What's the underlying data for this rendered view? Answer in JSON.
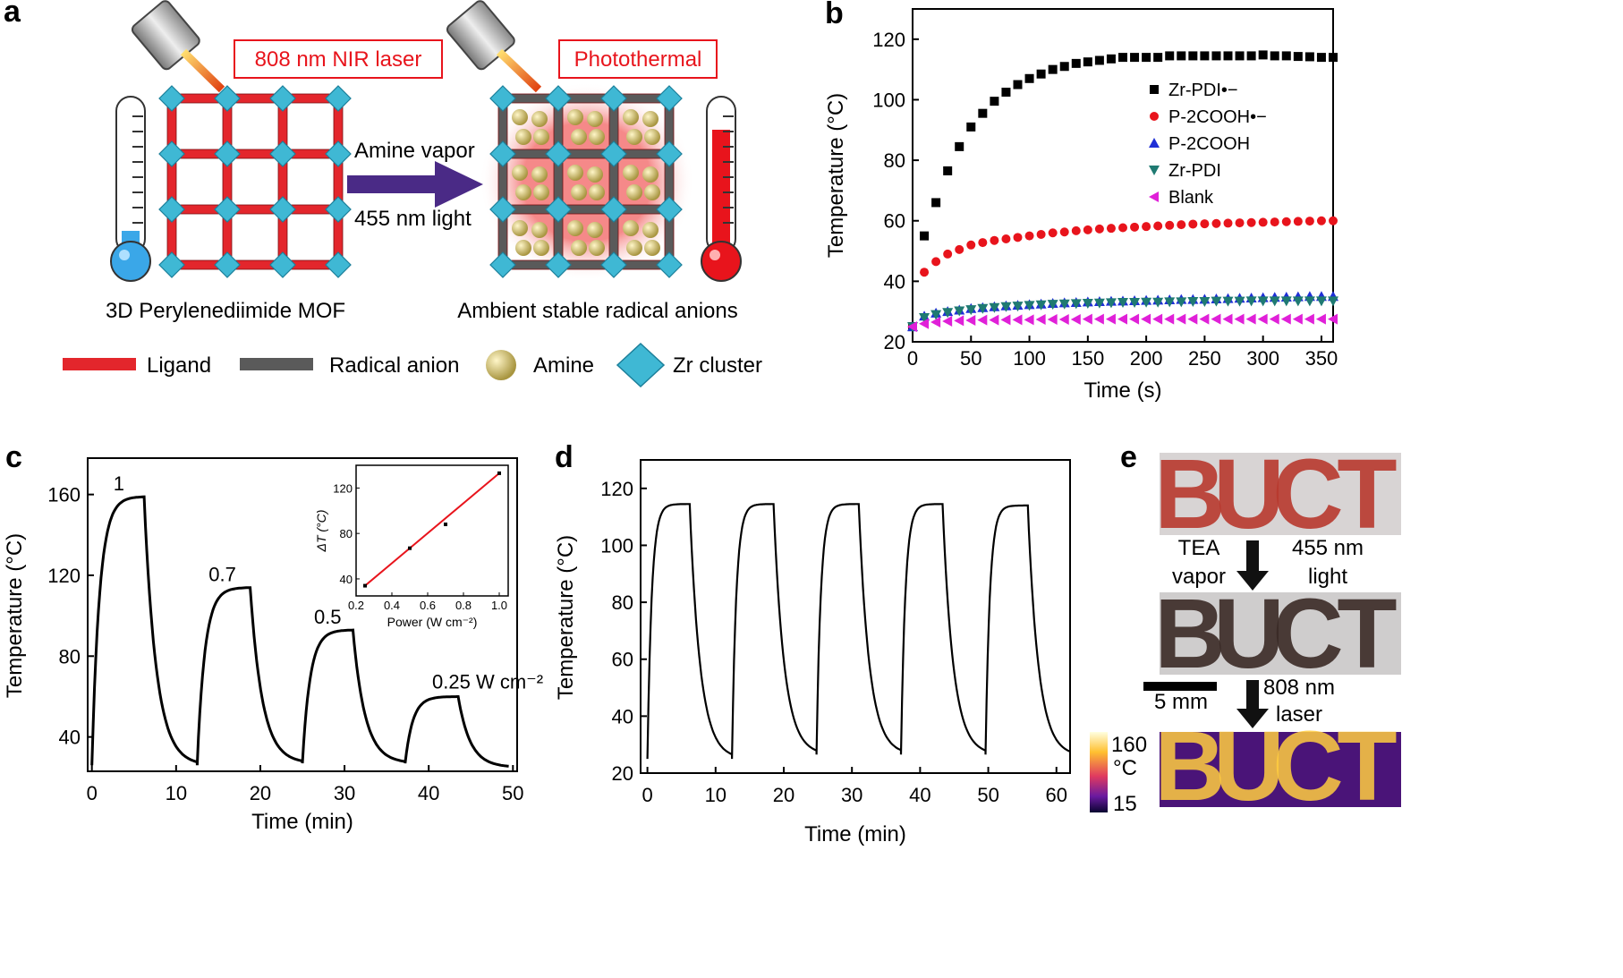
{
  "panels": {
    "a": {
      "label": "a",
      "laser_label": "808 nm NIR laser",
      "photothermal_label": "Photothermal",
      "amine_label": "Amine vapor",
      "light_label": "455 nm light",
      "left_caption": "3D Perylenediimide MOF",
      "right_caption": "Ambient stable radical anions",
      "legend": [
        "Ligand",
        "Radical anion",
        "Amine",
        "Zr cluster"
      ],
      "colors": {
        "ligand": "#e3262c",
        "radical": "#5a5a5a",
        "amine": "#c9b860",
        "zr": "#3fb8d4",
        "glow": "#f47c7c"
      }
    },
    "b": {
      "label": "b"
    },
    "c": {
      "label": "c"
    },
    "d": {
      "label": "d"
    },
    "e": {
      "label": "e",
      "word": [
        "B",
        "U",
        "C",
        "T"
      ],
      "arrow1_left": [
        "TEA",
        "vapor"
      ],
      "arrow1_right": [
        "455 nm",
        "light"
      ],
      "scale": "5 mm",
      "arrow2_right": [
        "808 nm",
        "laser"
      ],
      "colorbar_max": "160",
      "colorbar_unit": "°C",
      "colorbar_min": "15",
      "colors": {
        "red_dots": "#b8382e",
        "black_dots": "#3a2a26",
        "thermal_bg": "#5a1a8c",
        "thermal_fg": "#ffcc40"
      }
    }
  },
  "chart_data": [
    {
      "panel": "b",
      "type": "scatter",
      "xlabel": "Time (s)",
      "ylabel": "Temperature (°C)",
      "xlim": [
        0,
        360
      ],
      "ylim": [
        20,
        130
      ],
      "xticks": [
        "0",
        "50",
        "100",
        "150",
        "200",
        "250",
        "300",
        "350"
      ],
      "yticks": [
        "20",
        "40",
        "60",
        "80",
        "100",
        "120"
      ],
      "legend_position": "top-right",
      "series": [
        {
          "name": "Zr-PDI•−",
          "color": "#000000",
          "marker": "square",
          "points": [
            [
              0,
              25
            ],
            [
              10,
              55
            ],
            [
              20,
              66
            ],
            [
              30,
              76.5
            ],
            [
              40,
              84.5
            ],
            [
              50,
              91
            ],
            [
              60,
              95.5
            ],
            [
              70,
              99.5
            ],
            [
              80,
              102.5
            ],
            [
              90,
              105
            ],
            [
              100,
              107
            ],
            [
              110,
              108.5
            ],
            [
              120,
              110
            ],
            [
              130,
              111
            ],
            [
              140,
              112
            ],
            [
              150,
              112.5
            ],
            [
              160,
              113
            ],
            [
              170,
              113.5
            ],
            [
              180,
              114
            ],
            [
              190,
              114
            ],
            [
              200,
              114
            ],
            [
              210,
              114
            ],
            [
              220,
              114.5
            ],
            [
              230,
              114.5
            ],
            [
              240,
              114.5
            ],
            [
              250,
              114.5
            ],
            [
              260,
              114.5
            ],
            [
              270,
              114.5
            ],
            [
              280,
              114.5
            ],
            [
              290,
              114.5
            ],
            [
              300,
              114.8
            ],
            [
              310,
              114.5
            ],
            [
              320,
              114.5
            ],
            [
              330,
              114.3
            ],
            [
              340,
              114.2
            ],
            [
              350,
              114
            ],
            [
              360,
              114
            ]
          ]
        },
        {
          "name": "P-2COOH•−",
          "color": "#e8141c",
          "marker": "circle",
          "points": [
            [
              0,
              25
            ],
            [
              10,
              43
            ],
            [
              20,
              46.5
            ],
            [
              30,
              49
            ],
            [
              40,
              50.5
            ],
            [
              50,
              52
            ],
            [
              60,
              52.8
            ],
            [
              70,
              53.5
            ],
            [
              80,
              54
            ],
            [
              90,
              54.5
            ],
            [
              100,
              55
            ],
            [
              110,
              55.5
            ],
            [
              120,
              56
            ],
            [
              130,
              56.3
            ],
            [
              140,
              56.7
            ],
            [
              150,
              57
            ],
            [
              160,
              57.3
            ],
            [
              170,
              57.5
            ],
            [
              180,
              57.7
            ],
            [
              190,
              57.9
            ],
            [
              200,
              58.1
            ],
            [
              210,
              58.3
            ],
            [
              220,
              58.5
            ],
            [
              230,
              58.7
            ],
            [
              240,
              58.9
            ],
            [
              250,
              59
            ],
            [
              260,
              59.1
            ],
            [
              270,
              59.2
            ],
            [
              280,
              59.3
            ],
            [
              290,
              59.4
            ],
            [
              300,
              59.5
            ],
            [
              310,
              59.6
            ],
            [
              320,
              59.7
            ],
            [
              330,
              59.8
            ],
            [
              340,
              59.9
            ],
            [
              350,
              60
            ],
            [
              360,
              60
            ]
          ]
        },
        {
          "name": "P-2COOH",
          "color": "#1f2fd6",
          "marker": "triangle-up",
          "points": [
            [
              0,
              25
            ],
            [
              10,
              28.5
            ],
            [
              20,
              29.5
            ],
            [
              30,
              30
            ],
            [
              40,
              30.5
            ],
            [
              50,
              31
            ],
            [
              60,
              31.3
            ],
            [
              70,
              31.6
            ],
            [
              80,
              31.9
            ],
            [
              90,
              32.1
            ],
            [
              100,
              32.3
            ],
            [
              110,
              32.5
            ],
            [
              120,
              32.7
            ],
            [
              130,
              32.9
            ],
            [
              140,
              33
            ],
            [
              150,
              33.2
            ],
            [
              160,
              33.3
            ],
            [
              170,
              33.4
            ],
            [
              180,
              33.5
            ],
            [
              190,
              33.6
            ],
            [
              200,
              33.7
            ],
            [
              210,
              33.8
            ],
            [
              220,
              33.9
            ],
            [
              230,
              34
            ],
            [
              240,
              34
            ],
            [
              250,
              34.1
            ],
            [
              260,
              34.2
            ],
            [
              270,
              34.3
            ],
            [
              280,
              34.4
            ],
            [
              290,
              34.5
            ],
            [
              300,
              34.6
            ],
            [
              310,
              34.7
            ],
            [
              320,
              34.8
            ],
            [
              330,
              34.9
            ],
            [
              340,
              35
            ],
            [
              350,
              35
            ],
            [
              360,
              35
            ]
          ]
        },
        {
          "name": "Zr-PDI",
          "color": "#1f7a72",
          "marker": "triangle-down",
          "points": [
            [
              0,
              25
            ],
            [
              10,
              28
            ],
            [
              20,
              29
            ],
            [
              30,
              29.7
            ],
            [
              40,
              30.2
            ],
            [
              50,
              30.6
            ],
            [
              60,
              31
            ],
            [
              70,
              31.3
            ],
            [
              80,
              31.6
            ],
            [
              90,
              31.8
            ],
            [
              100,
              32
            ],
            [
              110,
              32.2
            ],
            [
              120,
              32.4
            ],
            [
              130,
              32.5
            ],
            [
              140,
              32.6
            ],
            [
              150,
              32.7
            ],
            [
              160,
              32.8
            ],
            [
              170,
              32.9
            ],
            [
              180,
              33
            ],
            [
              190,
              33
            ],
            [
              200,
              33.1
            ],
            [
              210,
              33.1
            ],
            [
              220,
              33.2
            ],
            [
              230,
              33.2
            ],
            [
              240,
              33.3
            ],
            [
              250,
              33.3
            ],
            [
              260,
              33.4
            ],
            [
              270,
              33.4
            ],
            [
              280,
              33.4
            ],
            [
              290,
              33.5
            ],
            [
              300,
              33.5
            ],
            [
              310,
              33.5
            ],
            [
              320,
              33.5
            ],
            [
              330,
              33.5
            ],
            [
              340,
              33.5
            ],
            [
              350,
              33.5
            ],
            [
              360,
              33.5
            ]
          ]
        },
        {
          "name": "Blank",
          "color": "#e020d8",
          "marker": "triangle-left",
          "points": [
            [
              0,
              25
            ],
            [
              10,
              26
            ],
            [
              20,
              26.5
            ],
            [
              30,
              26.8
            ],
            [
              40,
              27
            ],
            [
              50,
              27.1
            ],
            [
              60,
              27.2
            ],
            [
              70,
              27.2
            ],
            [
              80,
              27.3
            ],
            [
              90,
              27.3
            ],
            [
              100,
              27.3
            ],
            [
              110,
              27.4
            ],
            [
              120,
              27.4
            ],
            [
              130,
              27.4
            ],
            [
              140,
              27.4
            ],
            [
              150,
              27.5
            ],
            [
              160,
              27.5
            ],
            [
              170,
              27.5
            ],
            [
              180,
              27.5
            ],
            [
              190,
              27.5
            ],
            [
              200,
              27.5
            ],
            [
              210,
              27.5
            ],
            [
              220,
              27.5
            ],
            [
              230,
              27.5
            ],
            [
              240,
              27.5
            ],
            [
              250,
              27.5
            ],
            [
              260,
              27.5
            ],
            [
              270,
              27.5
            ],
            [
              280,
              27.5
            ],
            [
              290,
              27.5
            ],
            [
              300,
              27.5
            ],
            [
              310,
              27.5
            ],
            [
              320,
              27.5
            ],
            [
              330,
              27.5
            ],
            [
              340,
              27.5
            ],
            [
              350,
              27.5
            ],
            [
              360,
              27.5
            ]
          ]
        }
      ]
    },
    {
      "panel": "c",
      "type": "line",
      "xlabel": "Time (min)",
      "ylabel": "Temperature (°C)",
      "xlim": [
        -0.5,
        50.5
      ],
      "ylim": [
        23,
        178
      ],
      "xticks": [
        "0",
        "10",
        "20",
        "30",
        "40",
        "50"
      ],
      "yticks": [
        "40",
        "80",
        "120",
        "160"
      ],
      "annotations": [
        "1",
        "0.7",
        "0.5",
        "0.25 W cm⁻²"
      ],
      "cycles": [
        {
          "power": 1.0,
          "on_start": 0,
          "on_end": 6.2,
          "off_end": 12.5,
          "peak": 159,
          "base": 26
        },
        {
          "power": 0.7,
          "on_start": 12.5,
          "on_end": 18.8,
          "off_end": 25,
          "peak": 114,
          "base": 27
        },
        {
          "power": 0.5,
          "on_start": 25,
          "on_end": 31,
          "off_end": 37.2,
          "peak": 93,
          "base": 27
        },
        {
          "power": 0.25,
          "on_start": 37.2,
          "on_end": 43.5,
          "off_end": 49.5,
          "peak": 60,
          "base": 25
        }
      ],
      "inset": {
        "type": "scatter",
        "xlabel": "Power (W cm⁻²)",
        "ylabel": "ΔT (°C)",
        "xlim": [
          0.2,
          1.05
        ],
        "ylim": [
          25,
          140
        ],
        "xticks": [
          "0.2",
          "0.4",
          "0.6",
          "0.8",
          "1.0"
        ],
        "yticks": [
          "40",
          "80",
          "120"
        ],
        "points": [
          [
            0.25,
            34
          ],
          [
            0.5,
            67
          ],
          [
            0.7,
            88
          ],
          [
            1.0,
            133
          ]
        ],
        "fit_color": "#e8141c"
      }
    },
    {
      "panel": "d",
      "type": "line",
      "xlabel": "Time (min)",
      "ylabel": "Temperature (°C)",
      "xlim": [
        -1,
        62
      ],
      "ylim": [
        20,
        130
      ],
      "xticks": [
        "0",
        "10",
        "20",
        "30",
        "40",
        "50",
        "60"
      ],
      "yticks": [
        "20",
        "40",
        "60",
        "80",
        "100",
        "120"
      ],
      "cycles": [
        {
          "on_start": 0,
          "on_end": 6.2,
          "off_end": 12.4,
          "peak": 114.5,
          "base": 25
        },
        {
          "on_start": 12.4,
          "on_end": 18.5,
          "off_end": 24.8,
          "peak": 114.5,
          "base": 26.5
        },
        {
          "on_start": 24.8,
          "on_end": 31,
          "off_end": 37.2,
          "peak": 114.5,
          "base": 26.5
        },
        {
          "on_start": 37.2,
          "on_end": 43.3,
          "off_end": 49.6,
          "peak": 114.5,
          "base": 26.5
        },
        {
          "on_start": 49.6,
          "on_end": 55.8,
          "off_end": 62,
          "peak": 114,
          "base": 26
        }
      ]
    }
  ]
}
